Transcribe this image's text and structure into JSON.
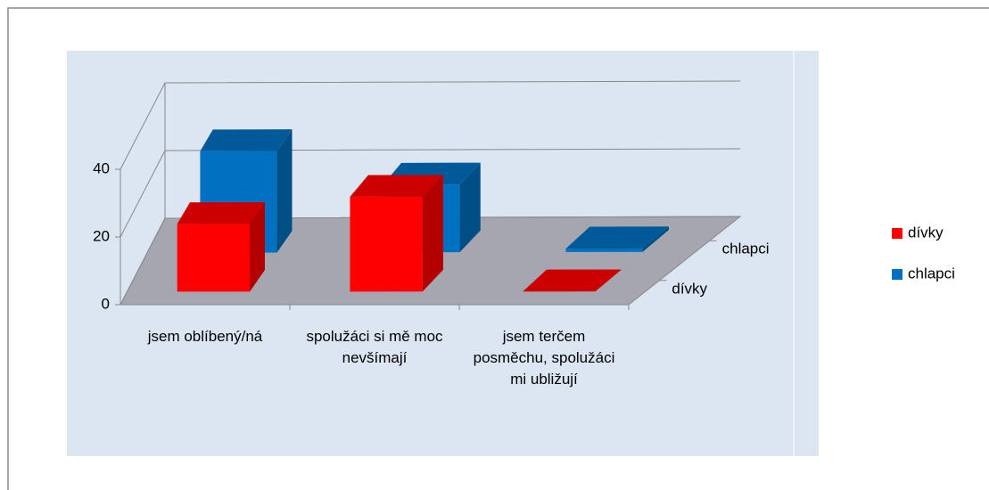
{
  "chart_data": {
    "type": "bar3d",
    "categories": [
      "jsem oblíbený/ná",
      "spolužáci si mě moc nevšímají",
      "jsem terčem posměchu, spolužáci mi ubližují"
    ],
    "series": [
      {
        "name": "dívky",
        "color": "#ff0000",
        "values": [
          20,
          28,
          0
        ]
      },
      {
        "name": "chlapci",
        "color": "#0070c0",
        "values": [
          30,
          20,
          1
        ]
      }
    ],
    "ylim": [
      0,
      40
    ],
    "yticks": [
      0,
      20,
      40
    ],
    "grid": true,
    "legend": "right"
  }
}
